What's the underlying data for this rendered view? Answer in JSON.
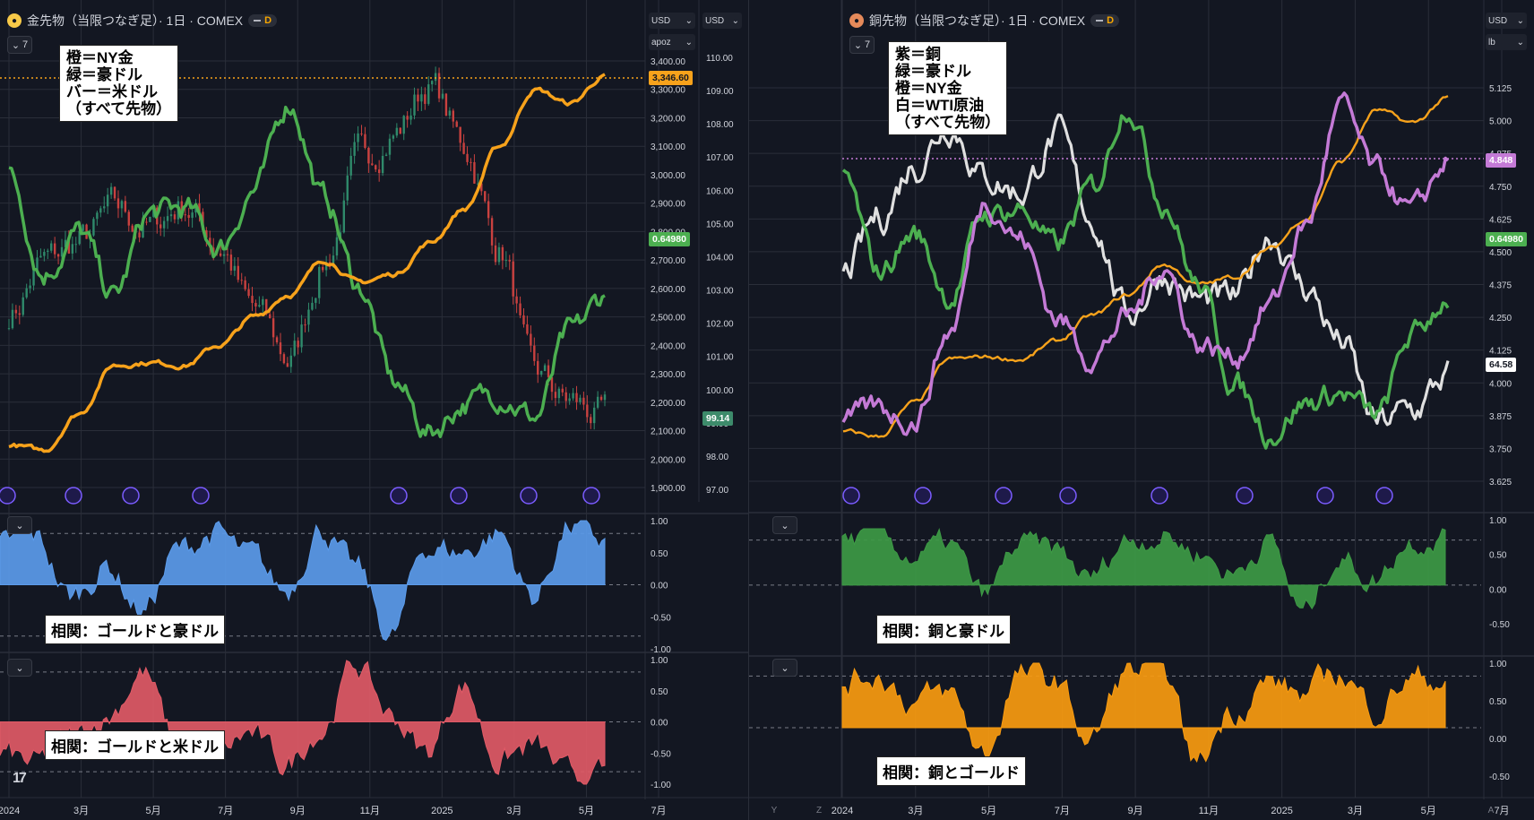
{
  "left": {
    "title": "金先物（当限つなぎ足）· 1日 · COMEX",
    "interval_badge": "D",
    "collapse_count": "7",
    "legend": [
      "橙＝NY金",
      "緑＝豪ドル",
      "バー＝米ドル",
      "（すべて先物）"
    ],
    "unit_left": "USD",
    "unit_left_sub": "apoz",
    "unit_right": "USD",
    "price_labels": [
      "3,400.00",
      "3,300.00",
      "3,200.00",
      "3,100.00",
      "3,000.00",
      "2,900.00",
      "2,800.00",
      "2,700.00",
      "2,600.00",
      "2,500.00",
      "2,400.00",
      "2,300.00",
      "2,200.00",
      "2,100.00",
      "2,000.00",
      "1,900.00"
    ],
    "dxy_labels": [
      "110.00",
      "109.00",
      "108.00",
      "107.00",
      "106.00",
      "105.00",
      "104.00",
      "103.00",
      "102.00",
      "101.00",
      "100.00",
      "99.00",
      "98.00",
      "97.00"
    ],
    "tag_gold": "3,346.60",
    "tag_aud": "0.64980",
    "tag_dxy": "99.14",
    "corr1_label": "相関：ゴールドと豪ドル",
    "corr2_label": "相関：ゴールドと米ドル",
    "corr_ticks": [
      "1.00",
      "0.50",
      "0.00",
      "-0.50",
      "-1.00"
    ],
    "x_labels": [
      "2024",
      "3月",
      "5月",
      "7月",
      "9月",
      "11月",
      "2025",
      "3月",
      "5月",
      "7月"
    ]
  },
  "right": {
    "title": "銅先物（当限つなぎ足）· 1日 · COMEX",
    "interval_badge": "D",
    "collapse_count": "7",
    "legend": [
      "紫＝銅",
      "緑＝豪ドル",
      "橙＝NY金",
      "白＝WTI原油",
      "（すべて先物）"
    ],
    "unit_top": "USD",
    "unit_sub": "lb",
    "price_labels": [
      "5.125",
      "5.000",
      "4.875",
      "4.750",
      "4.625",
      "4.500",
      "4.375",
      "4.250",
      "4.125",
      "4.000",
      "3.875",
      "3.750",
      "3.625"
    ],
    "tag_copper": "4.848",
    "tag_aud": "0.64980",
    "tag_wti": "64.58",
    "corr1_label": "相関：銅と豪ドル",
    "corr2_label": "相関：銅とゴールド",
    "corr1_ticks": [
      "1.00",
      "0.50",
      "0.00",
      "-0.50"
    ],
    "corr2_ticks": [
      "1.00",
      "0.50",
      "0.00",
      "-0.50"
    ],
    "x_labels": [
      "2024",
      "3月",
      "5月",
      "7月",
      "9月",
      "11月",
      "2025",
      "3月",
      "5月",
      "7月"
    ],
    "bottom_buttons": [
      "Y",
      "Z",
      "A"
    ]
  },
  "colors": {
    "background": "#131722",
    "grid": "#2a2e39",
    "gold": "#f7a21b",
    "aud": "#4caf50",
    "copper": "#c47ad6",
    "wti": "#e0e0e0",
    "candle_up": "#2f8a6b",
    "candle_down": "#c9413f",
    "corr_gold_aud": "#5b9bea",
    "corr_gold_usd": "#e05a66",
    "corr_copper_aud": "#3d9a45",
    "corr_copper_gold": "#f89b10"
  },
  "chart_data": [
    {
      "type": "line",
      "title": "金先物（当限つなぎ足）· 1日 · COMEX",
      "x": [
        "2024-01",
        "2024-02",
        "2024-03",
        "2024-04",
        "2024-05",
        "2024-06",
        "2024-07",
        "2024-08",
        "2024-09",
        "2024-10",
        "2024-11",
        "2024-12",
        "2025-01",
        "2025-02",
        "2025-03",
        "2025-04",
        "2025-05",
        "2025-06"
      ],
      "series": [
        {
          "name": "橙＝NY金",
          "values": [
            2050,
            2030,
            2160,
            2330,
            2340,
            2330,
            2400,
            2500,
            2580,
            2700,
            2620,
            2650,
            2760,
            2880,
            3100,
            3300,
            3250,
            3346.6
          ]
        },
        {
          "name": "緑＝豪ドル",
          "values": [
            0.675,
            0.655,
            0.663,
            0.65,
            0.667,
            0.668,
            0.66,
            0.672,
            0.69,
            0.67,
            0.652,
            0.632,
            0.622,
            0.628,
            0.63,
            0.625,
            0.642,
            0.6498
          ]
        },
        {
          "name": "バー＝米ドル",
          "values": [
            102.3,
            103.8,
            104.4,
            105.3,
            104.9,
            105.6,
            104.4,
            102.3,
            100.9,
            103.9,
            106.8,
            107.8,
            109.2,
            107.3,
            104.3,
            100.3,
            99.6,
            99.14
          ]
        }
      ],
      "ylim": [
        1900,
        3400
      ]
    },
    {
      "type": "area",
      "title": "相関：ゴールドと豪ドル",
      "x": [
        "2024-01",
        "2024-02",
        "2024-03",
        "2024-04",
        "2024-05",
        "2024-06",
        "2024-07",
        "2024-08",
        "2024-09",
        "2024-10",
        "2024-11",
        "2024-12",
        "2025-01",
        "2025-02",
        "2025-03",
        "2025-04",
        "2025-05",
        "2025-06"
      ],
      "values": [
        0.6,
        0.7,
        -0.2,
        0.3,
        -0.4,
        0.5,
        0.8,
        0.4,
        -0.1,
        0.9,
        0.2,
        -0.8,
        0.6,
        0.5,
        0.8,
        -0.2,
        0.9,
        0.65
      ],
      "ylim": [
        -1,
        1
      ]
    },
    {
      "type": "area",
      "title": "相関：ゴールドと米ドル",
      "x": [
        "2024-01",
        "2024-02",
        "2024-03",
        "2024-04",
        "2024-05",
        "2024-06",
        "2024-07",
        "2024-08",
        "2024-09",
        "2024-10",
        "2024-11",
        "2024-12",
        "2025-01",
        "2025-02",
        "2025-03",
        "2025-04",
        "2025-05",
        "2025-06"
      ],
      "values": [
        -0.5,
        -0.7,
        -0.3,
        0.1,
        0.8,
        -0.4,
        -0.6,
        -0.2,
        -0.7,
        -0.1,
        0.9,
        0.1,
        -0.5,
        0.6,
        -0.6,
        -0.4,
        -0.9,
        -0.85
      ],
      "ylim": [
        -1,
        1
      ]
    },
    {
      "type": "line",
      "title": "銅先物（当限つなぎ足）· 1日 · COMEX",
      "x": [
        "2024-01",
        "2024-02",
        "2024-03",
        "2024-04",
        "2024-05",
        "2024-06",
        "2024-07",
        "2024-08",
        "2024-09",
        "2024-10",
        "2024-11",
        "2024-12",
        "2025-01",
        "2025-02",
        "2025-03",
        "2025-04",
        "2025-05",
        "2025-06"
      ],
      "series": [
        {
          "name": "紫＝銅",
          "values": [
            3.85,
            3.9,
            3.86,
            4.2,
            4.7,
            4.55,
            4.25,
            4.1,
            4.25,
            4.45,
            4.15,
            4.1,
            4.3,
            4.6,
            5.05,
            4.8,
            4.65,
            4.848
          ]
        },
        {
          "name": "緑＝豪ドル",
          "values": [
            0.675,
            0.655,
            0.663,
            0.65,
            0.667,
            0.668,
            0.66,
            0.672,
            0.69,
            0.67,
            0.652,
            0.632,
            0.622,
            0.628,
            0.63,
            0.625,
            0.642,
            0.6498
          ]
        },
        {
          "name": "橙＝NY金",
          "values": [
            2050,
            2030,
            2160,
            2330,
            2340,
            2330,
            2400,
            2500,
            2580,
            2700,
            2620,
            2650,
            2760,
            2880,
            3100,
            3300,
            3250,
            3346.6
          ]
        },
        {
          "name": "白＝WTI原油",
          "values": [
            72,
            76,
            80,
            83,
            79,
            78,
            82,
            76,
            69,
            72,
            70,
            70,
            75,
            71,
            67,
            61,
            62,
            64.58
          ]
        }
      ],
      "ylim": [
        3.625,
        5.125
      ]
    },
    {
      "type": "area",
      "title": "相関：銅と豪ドル",
      "x": [
        "2024-01",
        "2024-02",
        "2024-03",
        "2024-04",
        "2024-05",
        "2024-06",
        "2024-07",
        "2024-08",
        "2024-09",
        "2024-10",
        "2024-11",
        "2024-12",
        "2025-01",
        "2025-02",
        "2025-03",
        "2025-04",
        "2025-05",
        "2025-06"
      ],
      "values": [
        0.8,
        0.85,
        0.5,
        0.7,
        -0.2,
        0.7,
        0.6,
        0.1,
        0.8,
        0.9,
        0.6,
        0.2,
        0.8,
        -0.5,
        0.5,
        0.1,
        0.8,
        0.9
      ],
      "ylim": [
        -0.75,
        1
      ]
    },
    {
      "type": "area",
      "title": "相関：銅とゴールド",
      "x": [
        "2024-01",
        "2024-02",
        "2024-03",
        "2024-04",
        "2024-05",
        "2024-06",
        "2024-07",
        "2024-08",
        "2024-09",
        "2024-10",
        "2024-11",
        "2024-12",
        "2025-01",
        "2025-02",
        "2025-03",
        "2025-04",
        "2025-05",
        "2025-06"
      ],
      "values": [
        0.7,
        0.85,
        0.4,
        0.5,
        -0.4,
        0.8,
        0.7,
        -0.2,
        0.85,
        0.9,
        -0.55,
        0.3,
        0.7,
        0.5,
        0.85,
        0.3,
        0.75,
        0.75
      ],
      "ylim": [
        -0.75,
        1
      ]
    }
  ]
}
